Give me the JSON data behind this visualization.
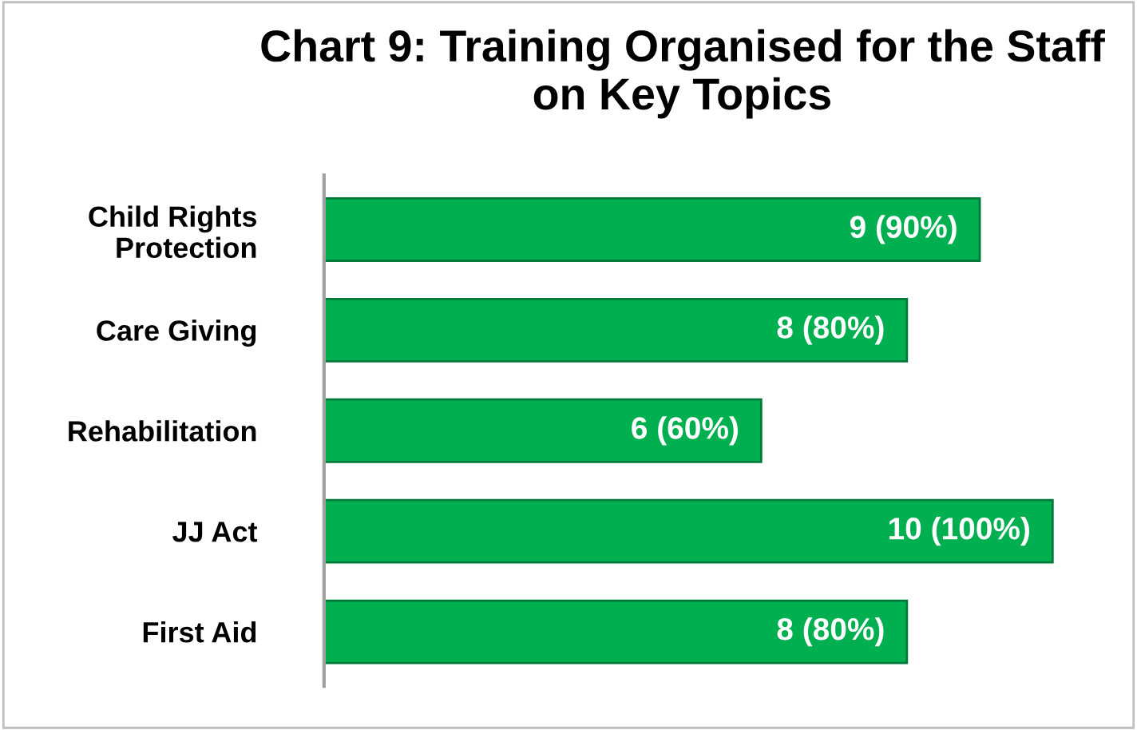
{
  "chart_data": {
    "type": "bar",
    "orientation": "horizontal",
    "title": "Chart 9: Training Organised for the Staff\non Key Topics",
    "categories": [
      "Child Rights\nProtection",
      "Care Giving",
      "Rehabilitation",
      "JJ Act",
      "First Aid"
    ],
    "values": [
      9,
      8,
      6,
      10,
      8
    ],
    "color": "#00b050",
    "value_labels": [
      "9 (90%)",
      "8 (80%)",
      "6 (60%)",
      "10 (100%)",
      "8 (80%)"
    ],
    "grid": false,
    "legend": false
  }
}
